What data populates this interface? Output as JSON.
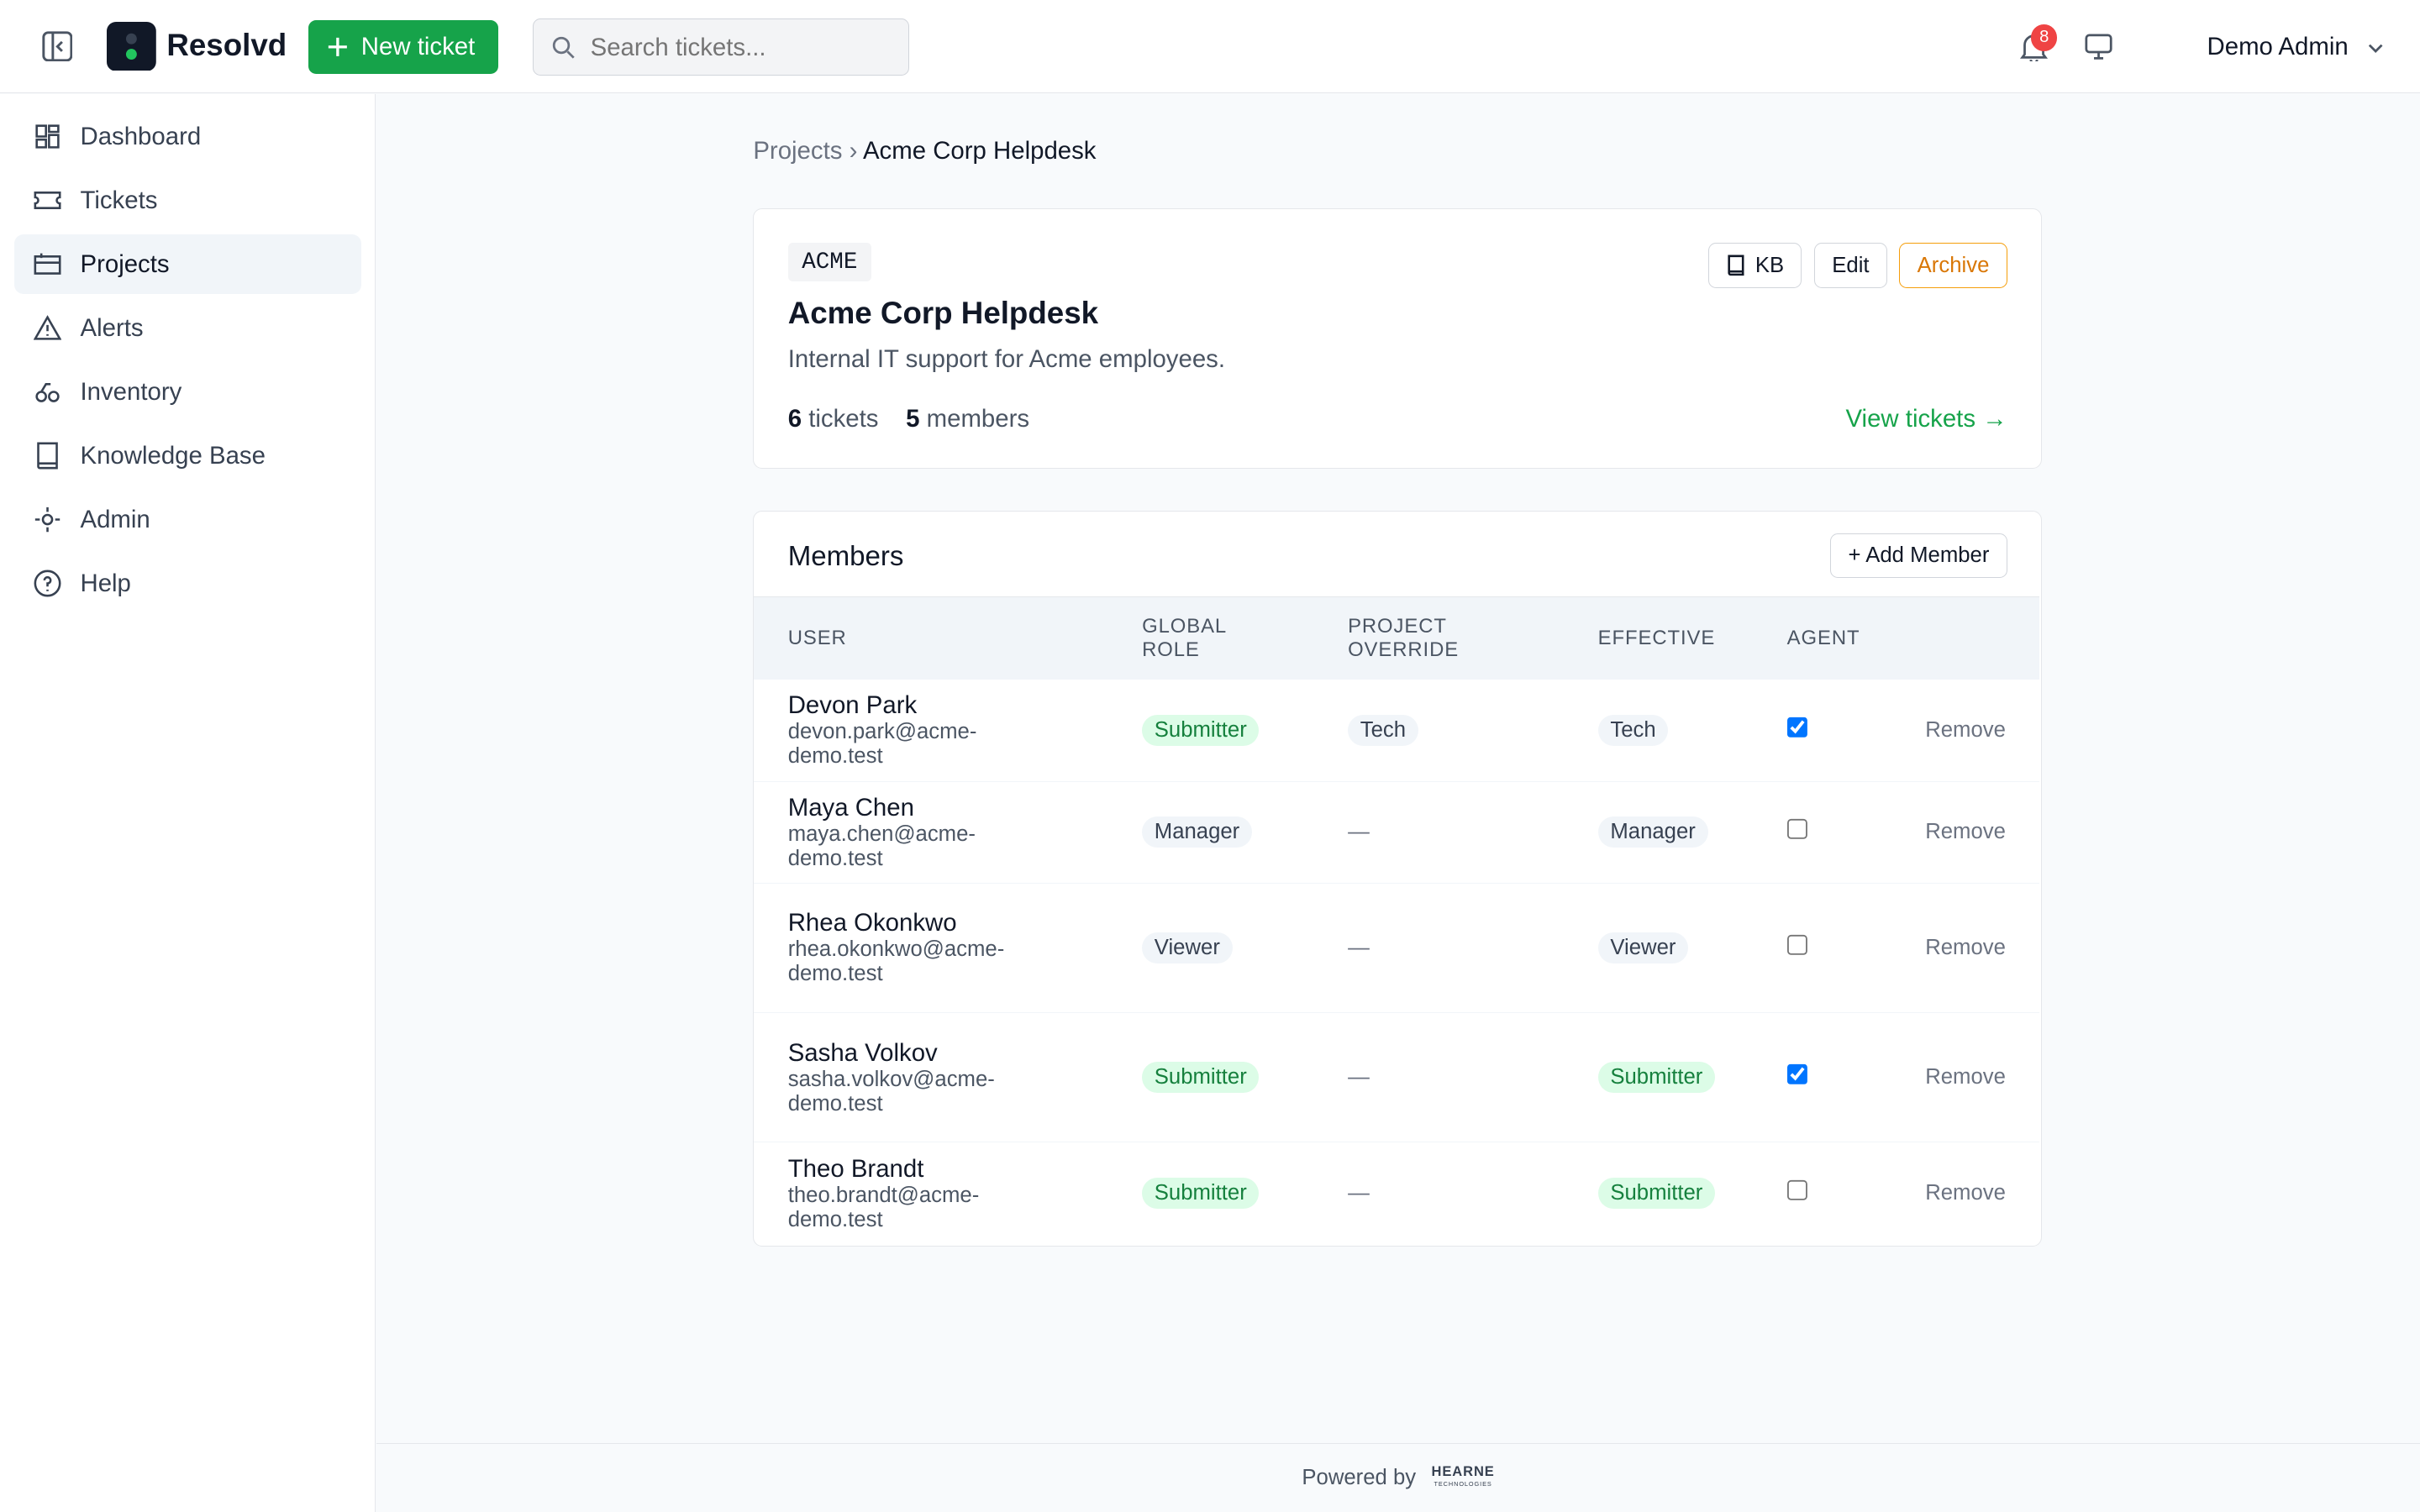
{
  "header": {
    "brand": "Resolvd",
    "new_ticket": "New ticket",
    "search_placeholder": "Search tickets...",
    "notification_count": "8",
    "user": "Demo Admin"
  },
  "sidebar": {
    "items": [
      "Dashboard",
      "Tickets",
      "Projects",
      "Alerts",
      "Inventory",
      "Knowledge Base",
      "Admin",
      "Help"
    ],
    "active": 2
  },
  "breadcrumb": [
    "Projects",
    "›",
    "Acme Corp Helpdesk"
  ],
  "project": {
    "code": "ACME",
    "name": "Acme Corp Helpdesk",
    "description": "Internal IT support for Acme employees.",
    "ticket_count": 6,
    "tickets_label": "tickets",
    "member_count": 5,
    "members_label": "members",
    "actions": [
      "KB",
      "Edit",
      "Archive"
    ],
    "view_tickets": "View tickets →"
  },
  "members": {
    "title": "Members",
    "add": "+ Add Member",
    "columns": [
      "USER",
      "GLOBAL ROLE",
      "PROJECT OVERRIDE",
      "EFFECTIVE",
      "AGENT"
    ],
    "remove": "Remove",
    "rows": [
      {
        "name": "Devon Park",
        "email": "devon.park@acme-demo.test",
        "global_role": "Submitter",
        "override": "Tech",
        "effective": "Tech",
        "agent": true
      },
      {
        "name": "Maya Chen",
        "email": "maya.chen@acme-demo.test",
        "global_role": "Manager",
        "override": "—",
        "effective": "Manager",
        "agent": false
      },
      {
        "name": "Rhea Okonkwo",
        "email": "rhea.okonkwo@acme-demo.test",
        "global_role": "Viewer",
        "override": "—",
        "effective": "Viewer",
        "agent": false
      },
      {
        "name": "Sasha Volkov",
        "email": "sasha.volkov@acme-demo.test",
        "global_role": "Submitter",
        "override": "—",
        "effective": "Submitter",
        "agent": true
      },
      {
        "name": "Theo Brandt",
        "email": "theo.brandt@acme-demo.test",
        "global_role": "Submitter",
        "override": "—",
        "effective": "Submitter",
        "agent": false
      }
    ]
  },
  "footer": {
    "powered_by": "Powered by",
    "logo": "HEARNE",
    "logo_sub": "TECHNOLOGIES"
  }
}
